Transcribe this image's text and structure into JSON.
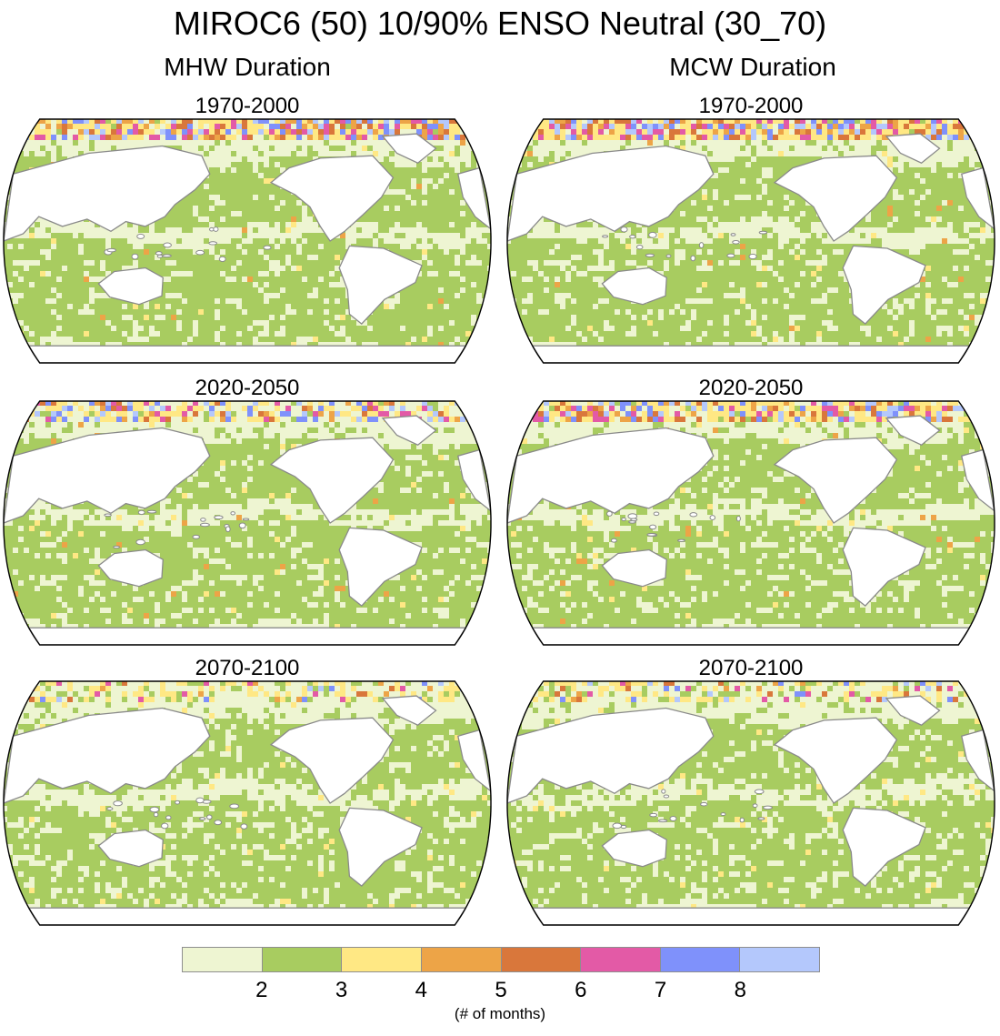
{
  "title": "MIROC6 (50) 10/90% ENSO Neutral (30_70)",
  "columns": [
    {
      "heading": "MHW Duration",
      "panels": [
        {
          "period": "1970-2000",
          "hot": 0.6
        },
        {
          "period": "2020-2050",
          "hot": 0.45
        },
        {
          "period": "2070-2100",
          "hot": 0.15
        }
      ]
    },
    {
      "heading": "MCW Duration",
      "panels": [
        {
          "period": "1970-2000",
          "hot": 0.7
        },
        {
          "period": "2020-2050",
          "hot": 0.6
        },
        {
          "period": "2070-2100",
          "hot": 0.2
        }
      ]
    }
  ],
  "colorbar": {
    "colors": [
      "#eef5d2",
      "#a8cc60",
      "#ffe884",
      "#eda447",
      "#d9773b",
      "#e35aa6",
      "#7f91fb",
      "#b4c8fc"
    ],
    "tick_labels": [
      "2",
      "3",
      "4",
      "5",
      "6",
      "7",
      "8"
    ],
    "unit_label": "(# of months)"
  },
  "land_color": "#ffffff",
  "coast_color": "#8a8a8a"
}
